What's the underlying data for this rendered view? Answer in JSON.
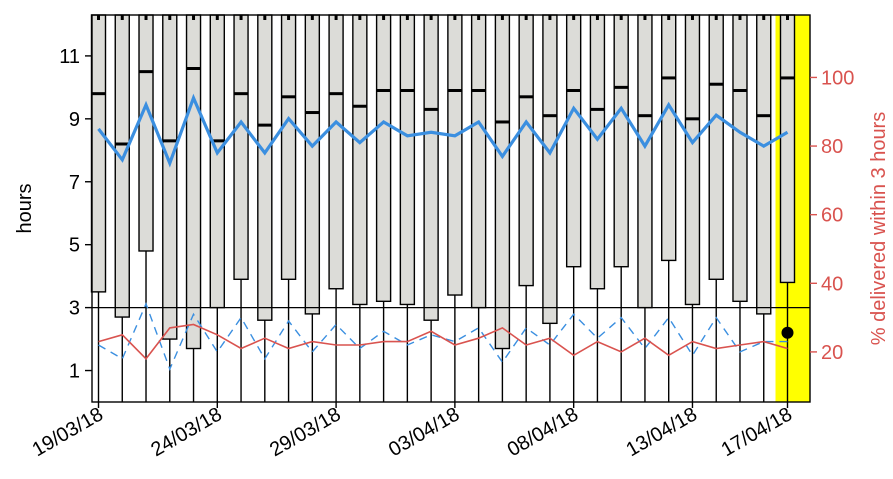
{
  "chart_data": {
    "type": "box",
    "ylabel_left": "hours",
    "ylabel_right": "% delivered within 3 hours",
    "ylim_left": [
      0,
      12.3
    ],
    "ylim_right": [
      5.4,
      118.2
    ],
    "yticks_left": [
      "1",
      "3",
      "5",
      "7",
      "9",
      "11"
    ],
    "yticks_right": [
      "20",
      "40",
      "60",
      "80",
      "100"
    ],
    "date_labels": [
      "19/03/18",
      "24/03/18",
      "29/03/18",
      "03/04/18",
      "08/04/18",
      "13/04/18",
      "17/04/18"
    ],
    "reference_line_hours": 3,
    "highlighted_day": "17/04/18",
    "colors": {
      "box_fill": "#dcdcd8",
      "blue_line": "#3b8fe0",
      "red_line": "#d9534f",
      "right_axis": "#d9534f",
      "highlight": "#ffff00"
    },
    "boxes": {
      "dates": [
        "19/03/18",
        "20/03/18",
        "21/03/18",
        "22/03/18",
        "23/03/18",
        "24/03/18",
        "25/03/18",
        "26/03/18",
        "27/03/18",
        "28/03/18",
        "29/03/18",
        "30/03/18",
        "31/03/18",
        "01/04/18",
        "02/04/18",
        "03/04/18",
        "04/04/18",
        "05/04/18",
        "06/04/18",
        "07/04/18",
        "08/04/18",
        "09/04/18",
        "10/04/18",
        "11/04/18",
        "12/04/18",
        "13/04/18",
        "14/04/18",
        "15/04/18",
        "16/04/18",
        "17/04/18"
      ],
      "q1": [
        3.5,
        2.7,
        4.8,
        2.0,
        1.7,
        3.0,
        3.9,
        2.6,
        3.9,
        2.8,
        3.6,
        3.1,
        3.2,
        3.1,
        2.6,
        3.4,
        3.0,
        1.7,
        3.7,
        2.5,
        4.3,
        3.6,
        4.3,
        3.0,
        4.5,
        3.1,
        3.9,
        3.2,
        2.8,
        3.8
      ],
      "median": [
        9.8,
        8.2,
        10.5,
        8.3,
        10.6,
        8.3,
        9.8,
        8.8,
        9.7,
        9.2,
        9.8,
        9.4,
        9.9,
        9.9,
        9.3,
        9.9,
        9.9,
        8.9,
        9.7,
        9.1,
        9.9,
        9.3,
        10.0,
        9.1,
        10.3,
        9.0,
        10.1,
        9.9,
        9.1,
        10.3
      ]
    },
    "series": [
      {
        "name": "",
        "axis": "right",
        "style": "solid-blue",
        "values": [
          85,
          76,
          92,
          75,
          94,
          78,
          87,
          78,
          88,
          80,
          87,
          81,
          87,
          83,
          84,
          83,
          87,
          77,
          87,
          78,
          91,
          82,
          91,
          80,
          92,
          81,
          89,
          84,
          80,
          84
        ]
      },
      {
        "name": "",
        "axis": "right",
        "style": "dashed-blue",
        "values": [
          22,
          18,
          34,
          15,
          31,
          20,
          30,
          18,
          29,
          20,
          28,
          21,
          26,
          22,
          25,
          23,
          27,
          17,
          27,
          22,
          31,
          24,
          30,
          21,
          30,
          19,
          30,
          20,
          23,
          23
        ]
      },
      {
        "name": "",
        "axis": "right",
        "style": "solid-red",
        "values": [
          23,
          25,
          18,
          27,
          28,
          25,
          21,
          24,
          21,
          23,
          22,
          22,
          23,
          23,
          26,
          22,
          24,
          27,
          22,
          24,
          19,
          23,
          20,
          24,
          19,
          23,
          21,
          22,
          23,
          21
        ]
      }
    ],
    "marker_hours": 2.2
  }
}
